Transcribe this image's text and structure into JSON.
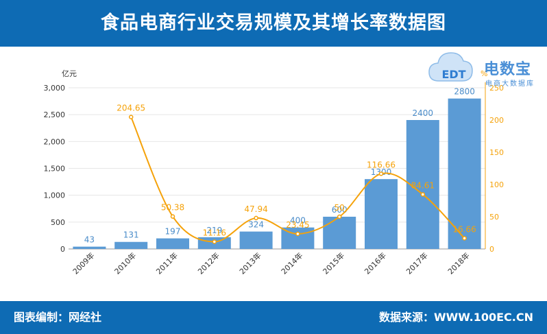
{
  "header": {
    "title": "食品电商行业交易规模及其增长率数据图"
  },
  "footer": {
    "left": "图表编制：网经社",
    "right": "数据来源：WWW.100EC.CN"
  },
  "logo": {
    "main": "电数宝",
    "sub": "电商大数据库",
    "badge": "EDT"
  },
  "colors": {
    "bar": "#5b9bd5",
    "line": "#f5a20a",
    "header": "#0e6bb4"
  },
  "chart_data": {
    "type": "bar",
    "categories": [
      "2009年",
      "2010年",
      "2011年",
      "2012年",
      "2013年",
      "2014年",
      "2015年",
      "2016年",
      "2017年",
      "2018年"
    ],
    "left_axis": {
      "label": "亿元",
      "ylim": [
        0,
        3000
      ],
      "ticks": [
        "0",
        "500",
        "1,000",
        "1,500",
        "2,000",
        "2,500",
        "3,000"
      ]
    },
    "right_axis": {
      "label": "%",
      "ylim": [
        0,
        250
      ],
      "ticks": [
        "0",
        "50",
        "100",
        "150",
        "200",
        "250"
      ]
    },
    "series": [
      {
        "type": "bar",
        "axis": "left",
        "values": [
          43,
          131,
          197,
          219,
          324,
          400,
          600,
          1300,
          2400,
          2800
        ],
        "labels": [
          "43",
          "131",
          "197",
          "219",
          "324",
          "400",
          "600",
          "1300",
          "2400",
          "2800"
        ]
      },
      {
        "type": "line",
        "axis": "right",
        "values": [
          null,
          204.65,
          50.38,
          11.16,
          47.94,
          23.45,
          50,
          116.66,
          84.61,
          16.66
        ],
        "labels": [
          "",
          "204.65",
          "50.38",
          "11.16",
          "47.94",
          "23.45",
          "50",
          "116.66",
          "84.61",
          "16.66"
        ]
      }
    ],
    "grid": true
  }
}
